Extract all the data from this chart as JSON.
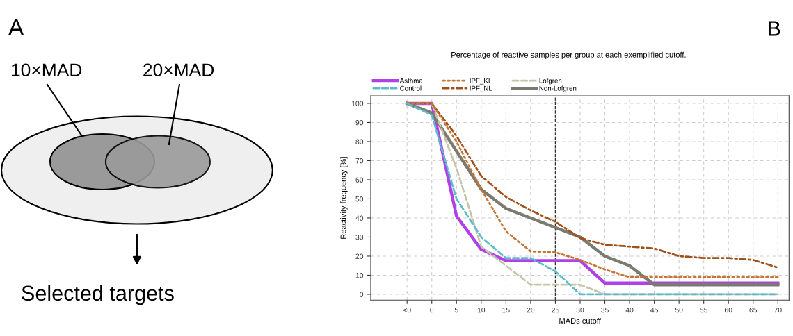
{
  "chart_data": [
    {
      "type": "other",
      "annotations": [
        "A",
        "10×MAD",
        "20×MAD",
        "Selected targets"
      ]
    },
    {
      "type": "line",
      "title": "Percentage of reactive samples per group at each exemplified cutoff.",
      "xlabel": "MADs cutoff",
      "ylabel": "Reactivity frequency [%]",
      "categories": [
        "<0",
        "0",
        "5",
        "10",
        "15",
        "20",
        "25",
        "30",
        "35",
        "40",
        "45",
        "50",
        "55",
        "60",
        "65",
        "70"
      ],
      "series": [
        {
          "name": "Asthma",
          "color": "#b040e8",
          "line_style": "solid",
          "values": [
            100,
            100,
            41,
            23.5,
            17.6,
            17.6,
            17.6,
            17.6,
            5.9,
            5.9,
            5.9,
            5.9,
            5.9,
            5.9,
            5.9,
            5.9
          ]
        },
        {
          "name": "Control",
          "color": "#5bbccc",
          "line_style": "dashed",
          "values": [
            100,
            94,
            50,
            30,
            19,
            19,
            12,
            0,
            0,
            0,
            0,
            0,
            0,
            0,
            0,
            0
          ]
        },
        {
          "name": "IPF_KI",
          "color": "#c87533",
          "line_style": "dotted",
          "values": [
            100,
            100,
            80,
            55,
            33,
            22.5,
            22,
            18,
            13,
            9,
            9,
            9,
            9,
            9,
            9,
            9
          ]
        },
        {
          "name": "IPF_NL",
          "color": "#a0501a",
          "line_style": "dashdot",
          "values": [
            100,
            100,
            83,
            62,
            51,
            44,
            38,
            29.5,
            26,
            25,
            24,
            20,
            19,
            19,
            18,
            14
          ]
        },
        {
          "name": "Lofgren",
          "color": "#c8c4a8",
          "line_style": "dashed",
          "values": [
            100,
            100,
            66,
            25,
            15,
            5,
            5,
            5,
            0,
            0,
            0,
            0,
            0,
            0,
            0,
            0
          ]
        },
        {
          "name": "Non-Lofgren",
          "color": "#7a7a70",
          "line_style": "solid",
          "values": [
            100,
            95,
            75,
            55,
            45,
            40,
            35,
            30,
            20,
            15,
            5,
            5,
            5,
            5,
            5,
            5
          ]
        }
      ],
      "ylim": [
        -3,
        104
      ],
      "yticks": [
        0,
        10,
        20,
        30,
        40,
        50,
        60,
        70,
        80,
        90,
        100
      ],
      "grid": true,
      "legend": "top",
      "ref_lines": [
        {
          "axis": "x",
          "value": "25",
          "color": "#333333",
          "line_style": "dashed"
        }
      ],
      "annotations": [
        "B"
      ]
    }
  ]
}
